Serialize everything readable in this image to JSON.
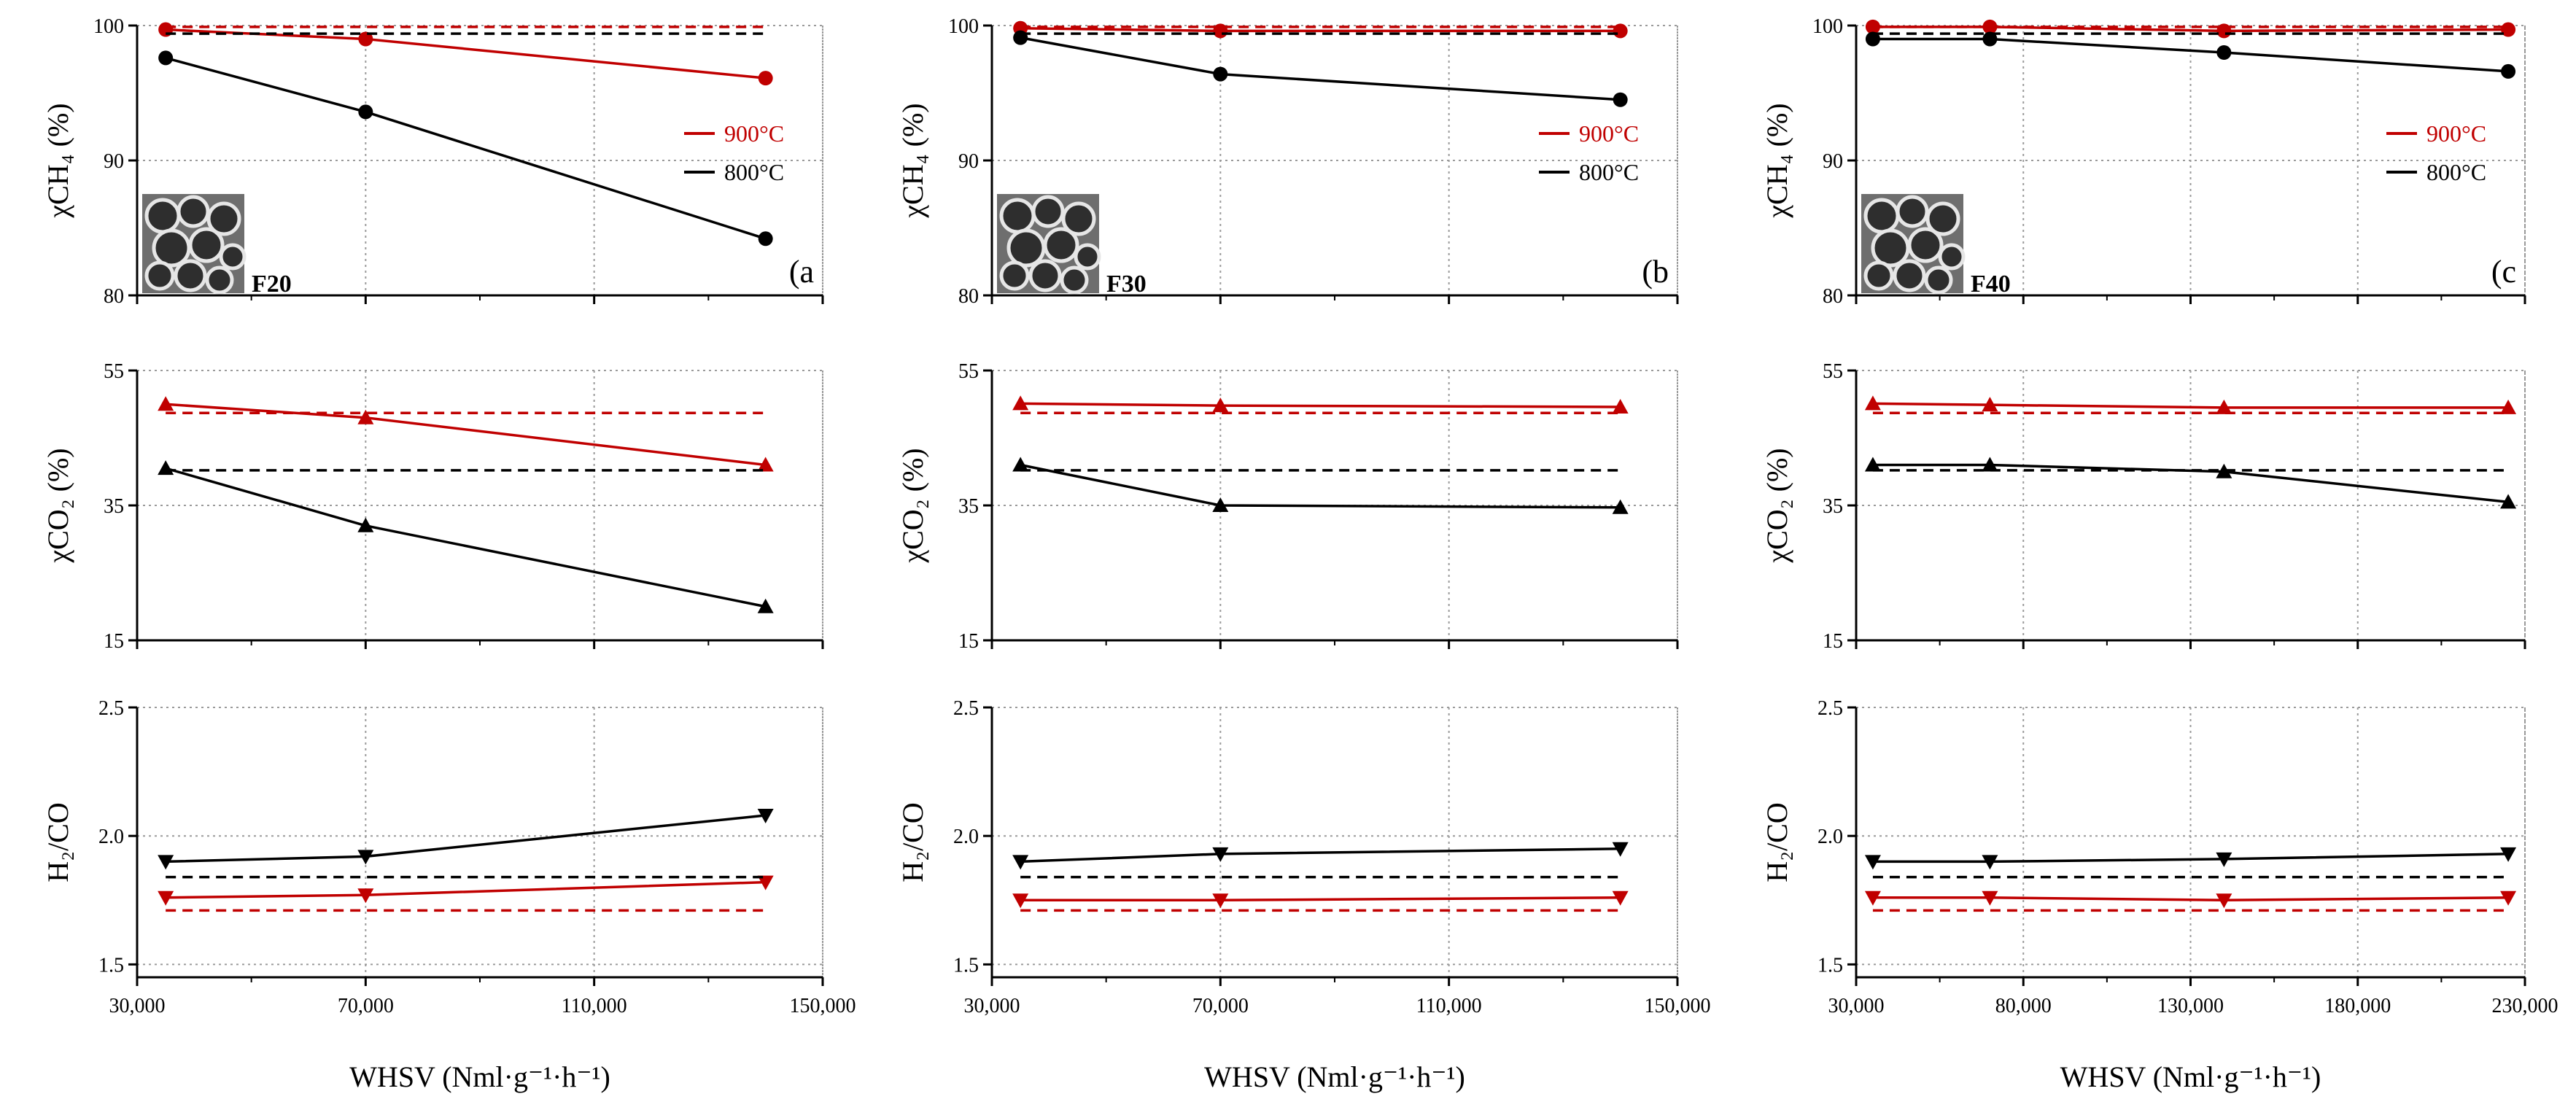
{
  "colors": {
    "t900": "#c00000",
    "t800": "#000000",
    "grid": "#9a9a9a"
  },
  "legend": {
    "t900": "900°C",
    "t800": "800°C"
  },
  "x_axis_title": "WHSV (Nml·g⁻¹·h⁻¹)",
  "y_titles": {
    "ch4": "χCH₄ (%)",
    "co2": "χCO₂ (%)",
    "h2co": "H₂/CO"
  },
  "columns": [
    {
      "letter": "(a",
      "sample": "F20",
      "xlim": [
        30000,
        150000
      ],
      "xticks": [
        "30,000",
        "70,000",
        "110,000",
        "150,000"
      ],
      "xtick_values": [
        30000,
        70000,
        110000,
        150000
      ]
    },
    {
      "letter": "(b",
      "sample": "F30",
      "xlim": [
        30000,
        150000
      ],
      "xticks": [
        "30,000",
        "70,000",
        "110,000",
        "150,000"
      ],
      "xtick_values": [
        30000,
        70000,
        110000,
        150000
      ]
    },
    {
      "letter": "(c",
      "sample": "F40",
      "xlim": [
        30000,
        230000
      ],
      "xticks": [
        "30,000",
        "80,000",
        "130,000",
        "180,000",
        "230,000"
      ],
      "xtick_values": [
        30000,
        80000,
        130000,
        180000,
        230000
      ]
    }
  ],
  "chart_data": [
    {
      "type": "line",
      "panel": "a-ch4",
      "ylim": [
        80,
        100
      ],
      "yticks": [
        "80",
        "90",
        "100"
      ],
      "ytick_values": [
        80,
        90,
        100
      ],
      "x": [
        35000,
        70000,
        140000
      ],
      "series": [
        {
          "name": "900°C",
          "values": [
            99.7,
            99.0,
            96.1
          ],
          "equilibrium": 99.9
        },
        {
          "name": "800°C",
          "values": [
            97.6,
            93.6,
            84.2
          ],
          "equilibrium": 99.4
        }
      ]
    },
    {
      "type": "line",
      "panel": "a-co2",
      "ylim": [
        15,
        55
      ],
      "yticks": [
        "15",
        "35",
        "55"
      ],
      "ytick_values": [
        15,
        35,
        55
      ],
      "x": [
        35000,
        70000,
        140000
      ],
      "series": [
        {
          "name": "900°C",
          "values": [
            50.0,
            48.0,
            41.0
          ],
          "equilibrium": 48.7
        },
        {
          "name": "800°C",
          "values": [
            40.5,
            32.0,
            20.0
          ],
          "equilibrium": 40.2
        }
      ]
    },
    {
      "type": "line",
      "panel": "a-h2co",
      "ylim": [
        1.45,
        2.5
      ],
      "yticks": [
        "1.5",
        "2.0",
        "2.5"
      ],
      "ytick_values": [
        1.5,
        2.0,
        2.5
      ],
      "x": [
        35000,
        70000,
        140000
      ],
      "series": [
        {
          "name": "900°C",
          "values": [
            1.76,
            1.77,
            1.82
          ],
          "equilibrium": 1.71
        },
        {
          "name": "800°C",
          "values": [
            1.9,
            1.92,
            2.08
          ],
          "equilibrium": 1.84
        }
      ]
    },
    {
      "type": "line",
      "panel": "b-ch4",
      "ylim": [
        80,
        100
      ],
      "yticks": [
        "80",
        "90",
        "100"
      ],
      "ytick_values": [
        80,
        90,
        100
      ],
      "x": [
        35000,
        70000,
        140000
      ],
      "series": [
        {
          "name": "900°C",
          "values": [
            99.8,
            99.6,
            99.6
          ],
          "equilibrium": 99.9
        },
        {
          "name": "800°C",
          "values": [
            99.1,
            96.4,
            94.5
          ],
          "equilibrium": 99.4
        }
      ]
    },
    {
      "type": "line",
      "panel": "b-co2",
      "ylim": [
        15,
        55
      ],
      "yticks": [
        "15",
        "35",
        "55"
      ],
      "ytick_values": [
        15,
        35,
        55
      ],
      "x": [
        35000,
        70000,
        140000
      ],
      "series": [
        {
          "name": "900°C",
          "values": [
            50.1,
            49.8,
            49.6
          ],
          "equilibrium": 48.7
        },
        {
          "name": "800°C",
          "values": [
            41.0,
            35.0,
            34.7
          ],
          "equilibrium": 40.2
        }
      ]
    },
    {
      "type": "line",
      "panel": "b-h2co",
      "ylim": [
        1.45,
        2.5
      ],
      "yticks": [
        "1.5",
        "2.0",
        "2.5"
      ],
      "ytick_values": [
        1.5,
        2.0,
        2.5
      ],
      "x": [
        35000,
        70000,
        140000
      ],
      "series": [
        {
          "name": "900°C",
          "values": [
            1.75,
            1.75,
            1.76
          ],
          "equilibrium": 1.71
        },
        {
          "name": "800°C",
          "values": [
            1.9,
            1.93,
            1.95
          ],
          "equilibrium": 1.84
        }
      ]
    },
    {
      "type": "line",
      "panel": "c-ch4",
      "ylim": [
        80,
        100
      ],
      "yticks": [
        "80",
        "90",
        "100"
      ],
      "ytick_values": [
        80,
        90,
        100
      ],
      "x": [
        35000,
        70000,
        140000,
        225000
      ],
      "series": [
        {
          "name": "900°C",
          "values": [
            99.9,
            99.9,
            99.6,
            99.7
          ],
          "equilibrium": 99.9
        },
        {
          "name": "800°C",
          "values": [
            99.0,
            99.0,
            98.0,
            96.6
          ],
          "equilibrium": 99.4
        }
      ]
    },
    {
      "type": "line",
      "panel": "c-co2",
      "ylim": [
        15,
        55
      ],
      "yticks": [
        "15",
        "35",
        "55"
      ],
      "ytick_values": [
        15,
        35,
        55
      ],
      "x": [
        35000,
        70000,
        140000,
        225000
      ],
      "series": [
        {
          "name": "900°C",
          "values": [
            50.1,
            49.9,
            49.5,
            49.5
          ],
          "equilibrium": 48.7
        },
        {
          "name": "800°C",
          "values": [
            41.0,
            41.0,
            40.0,
            35.5
          ],
          "equilibrium": 40.2
        }
      ]
    },
    {
      "type": "line",
      "panel": "c-h2co",
      "ylim": [
        1.45,
        2.5
      ],
      "yticks": [
        "1.5",
        "2.0",
        "2.5"
      ],
      "ytick_values": [
        1.5,
        2.0,
        2.5
      ],
      "x": [
        35000,
        70000,
        140000,
        225000
      ],
      "series": [
        {
          "name": "900°C",
          "values": [
            1.76,
            1.76,
            1.75,
            1.76
          ],
          "equilibrium": 1.71
        },
        {
          "name": "800°C",
          "values": [
            1.9,
            1.9,
            1.91,
            1.93
          ],
          "equilibrium": 1.84
        }
      ]
    }
  ]
}
